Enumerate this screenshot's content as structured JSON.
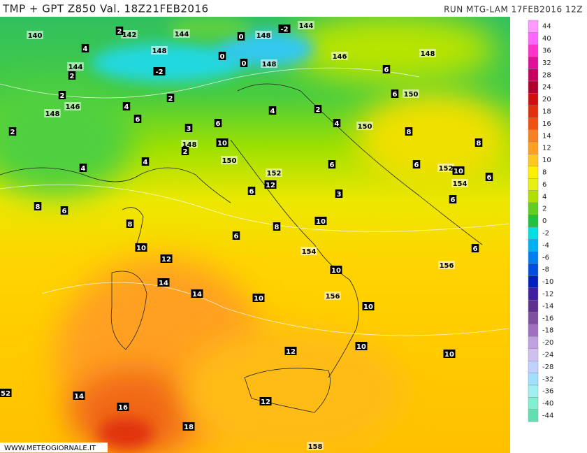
{
  "map": {
    "title": "TMP + GPT Z850 Val. 18Z21FEB2016",
    "run": "RUN MTG-LAM 17FEB2016 12Z",
    "watermark": "WWW.METEOGIORNALE.IT",
    "labels": [
      "140",
      "142",
      "144",
      "2",
      "148",
      "-2",
      "0",
      "148",
      "-2",
      "144",
      "0",
      "0",
      "148",
      "146",
      "148",
      "4",
      "144",
      "2",
      "2",
      "148",
      "146",
      "4",
      "2",
      "6",
      "2",
      "3",
      "6",
      "4",
      "2",
      "4",
      "6",
      "6",
      "150",
      "150",
      "8",
      "148",
      "2",
      "10",
      "4",
      "4",
      "150",
      "152",
      "12",
      "6",
      "6",
      "6",
      "152",
      "10",
      "8",
      "154",
      "6",
      "3",
      "8",
      "6",
      "8",
      "6",
      "10",
      "8",
      "6",
      "10",
      "12",
      "154",
      "10",
      "6",
      "156",
      "14",
      "14",
      "10",
      "156",
      "10",
      "12",
      "10",
      "10",
      "52",
      "14",
      "16",
      "12",
      "18",
      "158"
    ]
  },
  "colorbar": {
    "ticks": [
      44,
      40,
      36,
      32,
      28,
      24,
      20,
      18,
      16,
      14,
      12,
      10,
      8,
      6,
      4,
      2,
      0,
      -2,
      -4,
      -6,
      -8,
      -10,
      -12,
      -14,
      -16,
      -18,
      -20,
      -24,
      -28,
      -32,
      -36,
      -40,
      -44
    ],
    "colors": [
      "#ff99ff",
      "#ff66ff",
      "#ff33cc",
      "#e0109a",
      "#c80060",
      "#b00030",
      "#d01010",
      "#e03010",
      "#f05010",
      "#f88020",
      "#ffa020",
      "#ffc820",
      "#fff000",
      "#e8f010",
      "#b0e000",
      "#60d020",
      "#20c040",
      "#00e0e0",
      "#00b0f0",
      "#0080f0",
      "#0050e0",
      "#0020c0",
      "#4020a0",
      "#603090",
      "#8050a0",
      "#a070c0",
      "#c0a0e0",
      "#d0c0f0",
      "#c0d0ff",
      "#a0e0ff",
      "#a0f0f0",
      "#80f0d0",
      "#60e0b0"
    ]
  }
}
